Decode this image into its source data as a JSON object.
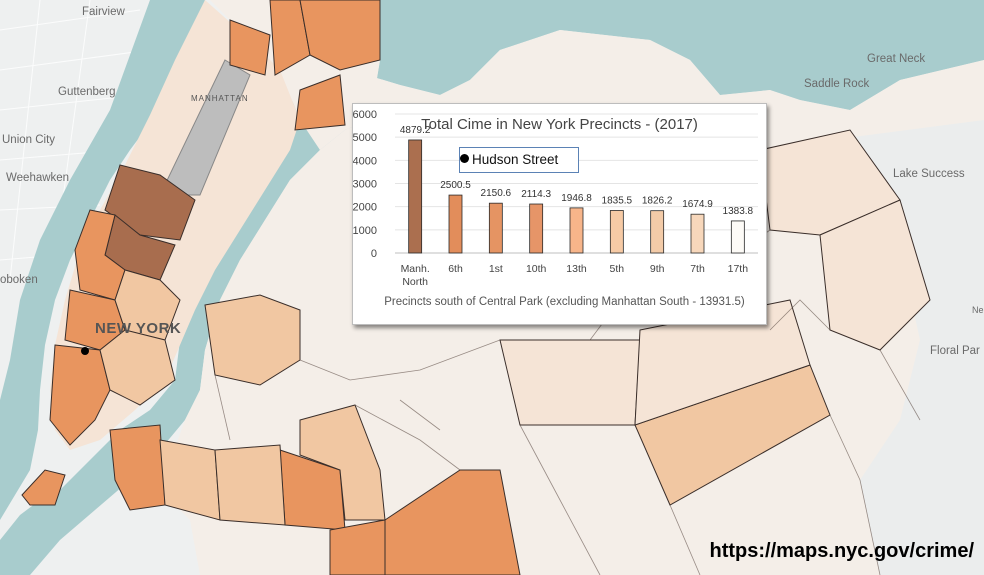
{
  "map": {
    "places": {
      "fairview": "Fairview",
      "guttenberg": "Guttenberg",
      "union_city": "Union City",
      "weehawken": "Weehawken",
      "hoboken": "oboken",
      "manhattan": "MANHATTAN",
      "new_york": "NEW YORK",
      "great_neck": "Great Neck",
      "saddle_rock": "Saddle Rock",
      "lake_success": "Lake Success",
      "floral_park": "Floral Par",
      "ne": "Ne"
    },
    "colors": {
      "water": "#a8cccd",
      "land": "#f4eee8",
      "precinct_light": "#f5e4d6",
      "precinct_mid": "#f1c7a2",
      "precinct_strong": "#e8955f",
      "precinct_dark": "#a86d4e",
      "park": "#bdbdbd"
    },
    "marker": "hudson-street-marker"
  },
  "chart_data": {
    "type": "bar",
    "title": "Total Cime in New York Precincts  - (2017)",
    "xlabel": "Precincts south of Central Park (excluding Manhattan South - 13931.5)",
    "ylabel": "",
    "categories": [
      "Manh. North",
      "6th",
      "1st",
      "10th",
      "13th",
      "5th",
      "9th",
      "7th",
      "17th"
    ],
    "values": [
      4879.2,
      2500.5,
      2150.6,
      2114.3,
      1946.8,
      1835.5,
      1826.2,
      1674.9,
      1383.8
    ],
    "value_labels": [
      "4879.2",
      "2500.5",
      "2150.6",
      "2114.3",
      "1946.8",
      "1835.5",
      "1826.2",
      "1674.9",
      "1383.8"
    ],
    "bar_colors": [
      "#ab6f4f",
      "#e28d5b",
      "#e59463",
      "#e69568",
      "#f7b58a",
      "#f6caa5",
      "#f3cba8",
      "#f7d7bb",
      "#fdfbf7"
    ],
    "ylim": [
      0,
      6000
    ],
    "yticks": [
      0,
      1000,
      2000,
      3000,
      4000,
      5000,
      6000
    ],
    "ytick_labels": [
      "0",
      "1000",
      "2000",
      "3000",
      "4000",
      "5000",
      "6000"
    ],
    "grid": true,
    "legend": "none"
  },
  "annotation": {
    "label": "Hudson Street"
  },
  "source": {
    "url": "https://maps.nyc.gov/crime/"
  }
}
